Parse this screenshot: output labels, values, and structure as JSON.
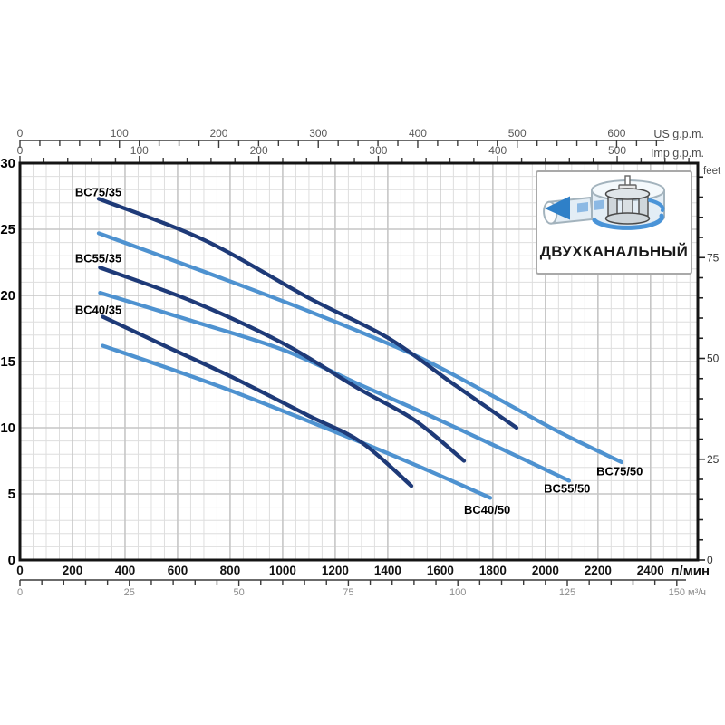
{
  "inset": {
    "label": "ДВУХКАНАЛЬНЫЙ",
    "icon": "two-channel-impeller"
  },
  "chart_data": {
    "type": "line",
    "title": "",
    "grid": true,
    "legend_position": "labels-on-curves",
    "palette": {
      "dark_series": "#1e3a78",
      "light_series": "#4e92d0",
      "grid_minor": "#dedede",
      "grid_major": "#c6c6c6",
      "plot_border": "#141414",
      "axis_line": "#3a3a3a",
      "muted_text": "#595959",
      "strong_text": "#111111",
      "gray_text": "#8c8c8c"
    },
    "axes": {
      "us_gpm": {
        "label": "US g.p.m.",
        "max": 681.6,
        "labeled": [
          0,
          100,
          200,
          300,
          400,
          500,
          600
        ],
        "minor_step": 20,
        "minor_max": 640
      },
      "imp_gpm": {
        "label": "Imp g.p.m.",
        "max": 567.5,
        "labeled": [
          0,
          100,
          200,
          300,
          400,
          500
        ],
        "minor_step": 20,
        "minor_max": 560
      },
      "lmin": {
        "label": "л/мин",
        "max": 2580,
        "labeled": [
          0,
          200,
          400,
          600,
          800,
          1000,
          1200,
          1400,
          1600,
          1800,
          2000,
          2200,
          2400
        ],
        "minor_step": 50
      },
      "m3h": {
        "label": "м³/ч",
        "max": 154.8,
        "labeled": [
          0,
          25,
          50,
          75,
          100,
          125,
          150
        ],
        "minor_step": 5,
        "minor_max": 150
      },
      "meters": {
        "label": "",
        "max": 30,
        "labeled": [
          0,
          5,
          10,
          15,
          20,
          25,
          30
        ],
        "minor_step": 1
      },
      "feet": {
        "label": "feet",
        "max": 98.43,
        "labeled": [
          0,
          25,
          50,
          75
        ],
        "minor_step": 5,
        "minor_max": 95
      }
    },
    "x_unit": "л/мин",
    "y_unit": "m",
    "series": [
      {
        "name": "BC75/35",
        "tone": "dark",
        "label_at": [
          210,
          27.5
        ],
        "points": [
          [
            300,
            27.3
          ],
          [
            700,
            24.2
          ],
          [
            1100,
            19.8
          ],
          [
            1400,
            16.8
          ],
          [
            1650,
            13.3
          ],
          [
            1890,
            10.0
          ]
        ]
      },
      {
        "name": "BC55/35",
        "tone": "dark",
        "label_at": [
          210,
          22.5
        ],
        "points": [
          [
            305,
            22.1
          ],
          [
            650,
            19.6
          ],
          [
            1000,
            16.4
          ],
          [
            1285,
            13.0
          ],
          [
            1500,
            10.6
          ],
          [
            1690,
            7.5
          ]
        ]
      },
      {
        "name": "BC40/35",
        "tone": "dark",
        "label_at": [
          210,
          18.6
        ],
        "points": [
          [
            315,
            18.4
          ],
          [
            550,
            16.2
          ],
          [
            800,
            13.9
          ],
          [
            1100,
            10.9
          ],
          [
            1300,
            8.9
          ],
          [
            1490,
            5.6
          ]
        ]
      },
      {
        "name": "BC75/50",
        "tone": "light",
        "label_at": [
          2194,
          6.4
        ],
        "points": [
          [
            300,
            24.7
          ],
          [
            700,
            21.8
          ],
          [
            1100,
            18.8
          ],
          [
            1500,
            15.5
          ],
          [
            1800,
            12.4
          ],
          [
            2050,
            9.7
          ],
          [
            2290,
            7.4
          ]
        ]
      },
      {
        "name": "BC55/50",
        "tone": "light",
        "label_at": [
          1994,
          5.1
        ],
        "points": [
          [
            305,
            20.2
          ],
          [
            650,
            18.1
          ],
          [
            1000,
            15.9
          ],
          [
            1300,
            13.2
          ],
          [
            1550,
            11.0
          ],
          [
            1790,
            8.8
          ],
          [
            2090,
            6.0
          ]
        ]
      },
      {
        "name": "BC40/50",
        "tone": "light",
        "label_at": [
          1690,
          3.5
        ],
        "points": [
          [
            315,
            16.2
          ],
          [
            790,
            12.9
          ],
          [
            1310,
            8.8
          ],
          [
            1550,
            6.8
          ],
          [
            1790,
            4.7
          ]
        ]
      }
    ]
  }
}
